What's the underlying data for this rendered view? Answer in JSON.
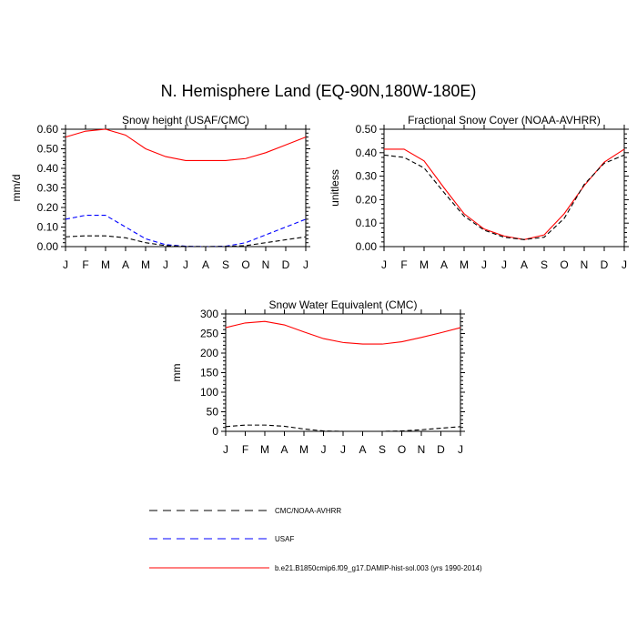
{
  "figure_title": "N. Hemisphere Land (EQ-90N,180W-180E)",
  "colors": {
    "CMC/NOAA-AVHRR": "#000000",
    "USAF": "#0000ff",
    "model": "#ff0000"
  },
  "legend": [
    {
      "label": "CMC/NOAA-AVHRR",
      "color": "#000000",
      "dash": true
    },
    {
      "label": "USAF",
      "color": "#0000ff",
      "dash": true
    },
    {
      "label": "b.e21.B1850cmip6.f09_g17.DAMIP-hist-sol.003 (yrs 1990-2014)",
      "color": "#ff0000",
      "dash": false
    }
  ],
  "chart_data": [
    {
      "type": "line",
      "title": "Snow height (USAF/CMC)",
      "ylabel": "mm/d",
      "xlabel": "",
      "ylim": [
        0,
        0.6
      ],
      "yticks": [
        "0.00",
        "0.10",
        "0.20",
        "0.30",
        "0.40",
        "0.50",
        "0.60"
      ],
      "categories": [
        "J",
        "F",
        "M",
        "A",
        "M",
        "J",
        "J",
        "A",
        "S",
        "O",
        "N",
        "D",
        "J"
      ],
      "series": [
        {
          "name": "b.e21.B1850cmip6.f09_g17.DAMIP-hist-sol.003 (yrs 1990-2014)",
          "color": "#ff0000",
          "dash": false,
          "values": [
            0.56,
            0.59,
            0.6,
            0.57,
            0.5,
            0.46,
            0.44,
            0.44,
            0.44,
            0.45,
            0.48,
            0.52,
            0.56
          ]
        },
        {
          "name": "USAF",
          "color": "#0000ff",
          "dash": true,
          "values": [
            0.14,
            0.16,
            0.16,
            0.1,
            0.04,
            0.01,
            0.002,
            0.0,
            0.002,
            0.02,
            0.06,
            0.1,
            0.14
          ]
        },
        {
          "name": "CMC/NOAA-AVHRR",
          "color": "#000000",
          "dash": true,
          "values": [
            0.05,
            0.055,
            0.055,
            0.045,
            0.02,
            0.005,
            0.001,
            0.0,
            0.001,
            0.005,
            0.02,
            0.035,
            0.05
          ]
        }
      ]
    },
    {
      "type": "line",
      "title": "Fractional Snow Cover (NOAA-AVHRR)",
      "ylabel": "unitless",
      "xlabel": "",
      "ylim": [
        0,
        0.5
      ],
      "yticks": [
        "0.00",
        "0.10",
        "0.20",
        "0.30",
        "0.40",
        "0.50"
      ],
      "categories": [
        "J",
        "F",
        "M",
        "A",
        "M",
        "J",
        "J",
        "A",
        "S",
        "O",
        "N",
        "D",
        "J"
      ],
      "series": [
        {
          "name": "b.e21.B1850cmip6.f09_g17.DAMIP-hist-sol.003 (yrs 1990-2014)",
          "color": "#ff0000",
          "dash": false,
          "values": [
            0.415,
            0.415,
            0.365,
            0.25,
            0.14,
            0.075,
            0.045,
            0.03,
            0.05,
            0.14,
            0.26,
            0.36,
            0.415
          ]
        },
        {
          "name": "CMC/NOAA-AVHRR",
          "color": "#000000",
          "dash": true,
          "values": [
            0.39,
            0.38,
            0.335,
            0.23,
            0.13,
            0.07,
            0.04,
            0.03,
            0.04,
            0.12,
            0.265,
            0.355,
            0.39
          ]
        }
      ]
    },
    {
      "type": "line",
      "title": "Snow Water Equivalent (CMC)",
      "ylabel": "mm",
      "xlabel": "",
      "ylim": [
        0,
        300
      ],
      "yticks": [
        "0",
        "50",
        "100",
        "150",
        "200",
        "250",
        "300"
      ],
      "categories": [
        "J",
        "F",
        "M",
        "A",
        "M",
        "J",
        "J",
        "A",
        "S",
        "O",
        "N",
        "D",
        "J"
      ],
      "series": [
        {
          "name": "b.e21.B1850cmip6.f09_g17.DAMIP-hist-sol.003 (yrs 1990-2014)",
          "color": "#ff0000",
          "dash": false,
          "values": [
            265,
            277,
            281,
            272,
            254,
            237,
            227,
            223,
            223,
            229,
            240,
            252,
            265
          ]
        },
        {
          "name": "CMC/NOAA-AVHRR",
          "color": "#000000",
          "dash": true,
          "values": [
            12,
            16,
            16,
            13,
            6,
            1,
            0,
            0,
            0,
            1,
            4,
            8,
            12
          ]
        }
      ]
    }
  ]
}
